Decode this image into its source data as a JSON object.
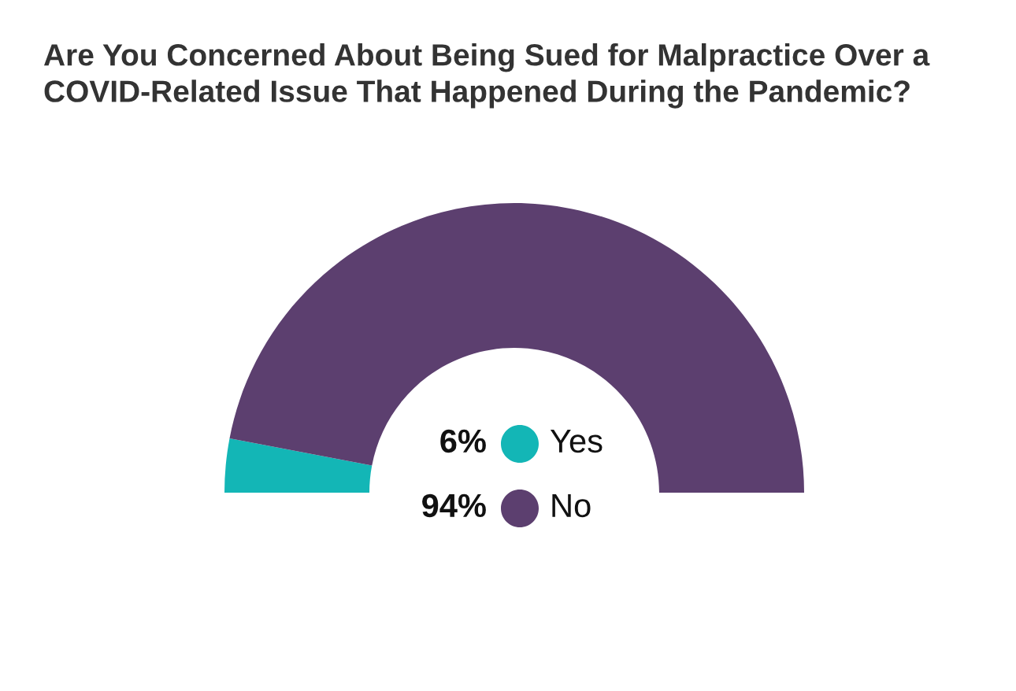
{
  "chart_data": {
    "type": "donut",
    "title": "Are You Concerned About Being Sued for Malpractice Over a\nCOVID-Related Issue That Happened During the Pandemic?",
    "categories": [
      "Yes",
      "No"
    ],
    "values": [
      6,
      94
    ],
    "colors": [
      "#13b6b6",
      "#5c3f6f"
    ],
    "value_labels": [
      "6%",
      "94%"
    ],
    "legend": "center"
  }
}
